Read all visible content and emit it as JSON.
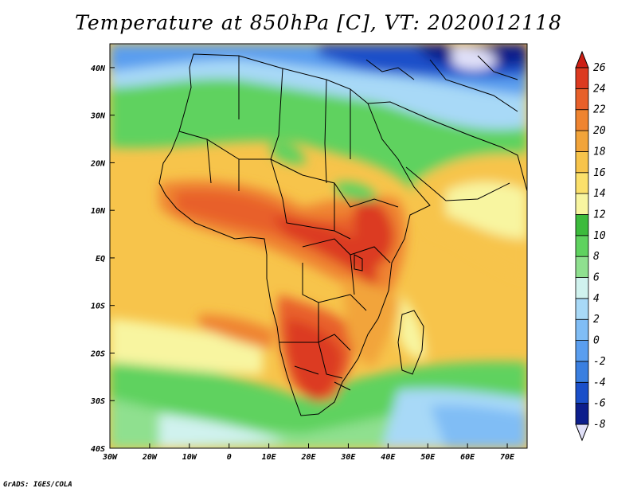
{
  "title": "Temperature at 850hPa [C], VT: 2020012118",
  "credit": "GrADS: IGES/COLA",
  "map": {
    "lon_ticks": [
      "30W",
      "20W",
      "10W",
      "0",
      "10E",
      "20E",
      "30E",
      "40E",
      "50E",
      "60E",
      "70E"
    ],
    "lat_ticks": [
      "40N",
      "30N",
      "20N",
      "10N",
      "EQ",
      "10S",
      "20S",
      "30S",
      "40S"
    ],
    "lon_range": [
      -30,
      75
    ],
    "lat_range": [
      -40,
      45
    ]
  },
  "colorbar": {
    "labels": [
      "26",
      "24",
      "22",
      "20",
      "18",
      "16",
      "14",
      "12",
      "10",
      "8",
      "6",
      "4",
      "2",
      "0",
      "-2",
      "-4",
      "-6",
      "-8"
    ],
    "colors": [
      "#e0e0f8",
      "#0c1e8c",
      "#1a4fc9",
      "#3a7fe0",
      "#5a9eef",
      "#80bdf5",
      "#a8d9f7",
      "#d0f2ee",
      "#8fe08f",
      "#5fd25f",
      "#3cbb3c",
      "#f8f5a0",
      "#fbe06b",
      "#f7c44b",
      "#f2a43a",
      "#ef8430",
      "#e8602a",
      "#dc3a20",
      "#cc1e14"
    ]
  }
}
